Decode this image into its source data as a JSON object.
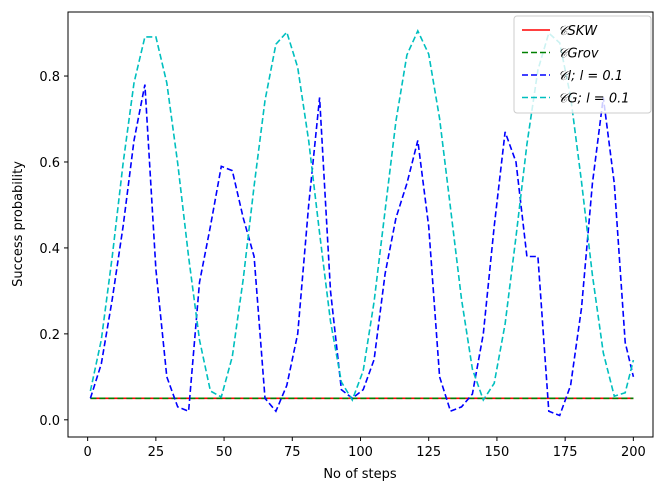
{
  "chart_data": {
    "type": "line",
    "xlabel": "No of steps",
    "ylabel": "Success probability",
    "xlim": [
      -7.2,
      207.2
    ],
    "ylim": [
      -0.04,
      0.949
    ],
    "xticks": [
      0,
      25,
      50,
      75,
      100,
      125,
      150,
      175,
      200
    ],
    "yticks": [
      {
        "value": 0,
        "label": "0.0"
      },
      0.2,
      0.4,
      0.6,
      0.8
    ],
    "legend": "upper right",
    "x": [
      1,
      5,
      9,
      13,
      17,
      21,
      25,
      29,
      33,
      37,
      41,
      45,
      49,
      53,
      57,
      61,
      65,
      69,
      73,
      77,
      81,
      85,
      89,
      93,
      97,
      101,
      105,
      109,
      113,
      117,
      121,
      125,
      129,
      133,
      137,
      141,
      145,
      149,
      153,
      157,
      161,
      165,
      169,
      173,
      177,
      181,
      185,
      189,
      193,
      197,
      200
    ],
    "series": [
      {
        "name": "𝒞SKW",
        "color": "#ff0000",
        "dash": false,
        "x": [
          1,
          200
        ],
        "values": [
          0.05,
          0.05
        ]
      },
      {
        "name": "𝒞Grov",
        "color": "#008000",
        "dash": true,
        "x": [
          1,
          200
        ],
        "values": [
          0.05,
          0.05
        ]
      },
      {
        "name": "𝒞l; l = 0.1",
        "color": "#0000ff",
        "dash": true,
        "values": [
          0.05,
          0.13,
          0.28,
          0.45,
          0.65,
          0.78,
          0.35,
          0.1,
          0.03,
          0.02,
          0.32,
          0.45,
          0.59,
          0.58,
          0.47,
          0.38,
          0.05,
          0.02,
          0.08,
          0.2,
          0.5,
          0.75,
          0.3,
          0.07,
          0.05,
          0.07,
          0.14,
          0.34,
          0.47,
          0.55,
          0.65,
          0.45,
          0.1,
          0.02,
          0.03,
          0.06,
          0.2,
          0.45,
          0.67,
          0.6,
          0.38,
          0.38,
          0.02,
          0.01,
          0.08,
          0.26,
          0.55,
          0.75,
          0.55,
          0.18,
          0.1
        ]
      },
      {
        "name": "𝒞G; l = 0.1",
        "color": "#00bfbf",
        "dash": true,
        "values": [
          0.067,
          0.186,
          0.379,
          0.597,
          0.784,
          0.891,
          0.891,
          0.784,
          0.597,
          0.379,
          0.186,
          0.067,
          0.053,
          0.147,
          0.327,
          0.544,
          0.743,
          0.874,
          0.902,
          0.82,
          0.649,
          0.434,
          0.229,
          0.088,
          0.046,
          0.114,
          0.275,
          0.487,
          0.696,
          0.849,
          0.905,
          0.851,
          0.701,
          0.493,
          0.281,
          0.118,
          0.046,
          0.085,
          0.223,
          0.426,
          0.641,
          0.814,
          0.9,
          0.877,
          0.752,
          0.554,
          0.337,
          0.156,
          0.055,
          0.063,
          0.139
        ]
      }
    ]
  }
}
